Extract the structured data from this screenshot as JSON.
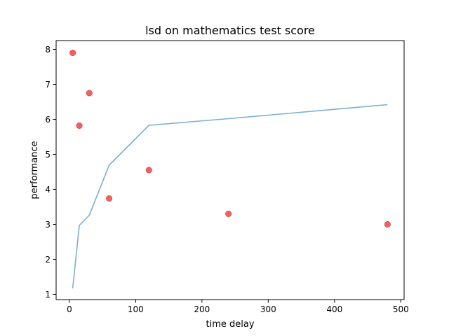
{
  "chart_data": {
    "type": "line",
    "title": "lsd on mathematics test score",
    "xlabel": "time delay",
    "ylabel": "performance",
    "xlim": [
      -20,
      505
    ],
    "ylim": [
      0.85,
      8.25
    ],
    "xticks": [
      0,
      100,
      200,
      300,
      400,
      500
    ],
    "yticks": [
      1,
      2,
      3,
      4,
      5,
      6,
      7,
      8
    ],
    "xtick_labels": [
      "0",
      "100",
      "200",
      "300",
      "400",
      "500"
    ],
    "ytick_labels": [
      "1",
      "2",
      "3",
      "4",
      "5",
      "6",
      "7",
      "8"
    ],
    "grid": false,
    "series": [
      {
        "type": "line",
        "color": "#7aaed4",
        "x": [
          5,
          15,
          30,
          60,
          120,
          240,
          480
        ],
        "y": [
          1.17,
          2.97,
          3.26,
          4.69,
          5.83,
          6.02,
          6.42
        ]
      },
      {
        "type": "scatter",
        "color": "#f05050",
        "x": [
          5,
          15,
          30,
          60,
          120,
          240,
          480
        ],
        "y": [
          7.9,
          5.82,
          6.75,
          3.74,
          4.55,
          3.3,
          3.0
        ]
      }
    ]
  }
}
